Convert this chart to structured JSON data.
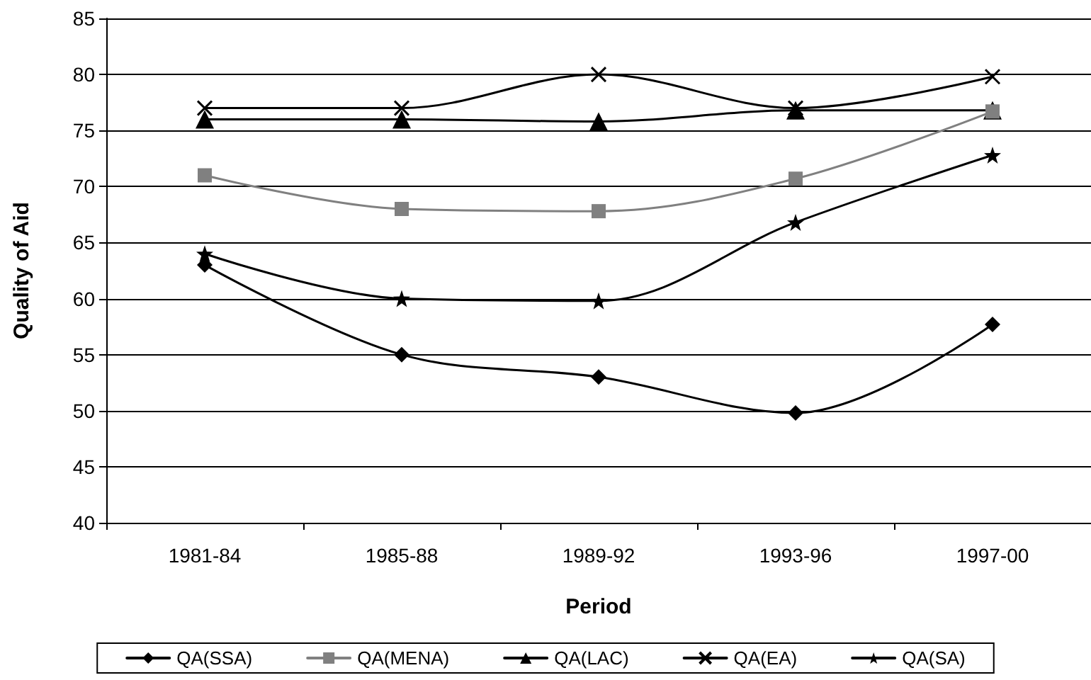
{
  "chart_data": {
    "type": "line",
    "xlabel": "Period",
    "ylabel": "Quality of Aid",
    "categories": [
      "1981-84",
      "1985-88",
      "1989-92",
      "1993-96",
      "1997-00"
    ],
    "series": [
      {
        "name": "QA(SSA)",
        "color": "#000000",
        "marker": "diamond",
        "values": [
          63,
          55,
          53,
          49.8,
          57.7
        ]
      },
      {
        "name": "QA(MENA)",
        "color": "#808080",
        "marker": "square",
        "values": [
          71,
          68,
          67.8,
          70.7,
          76.7
        ]
      },
      {
        "name": "QA(LAC)",
        "color": "#000000",
        "marker": "triangle",
        "values": [
          76,
          76,
          75.8,
          76.8,
          76.8
        ]
      },
      {
        "name": "QA(EA)",
        "color": "#000000",
        "marker": "cross",
        "values": [
          77,
          77,
          80,
          77,
          79.8
        ]
      },
      {
        "name": "QA(SA)",
        "color": "#000000",
        "marker": "star",
        "values": [
          64,
          60,
          59.8,
          66.8,
          72.8
        ]
      }
    ],
    "ylim": [
      40,
      85
    ],
    "yticks": [
      40,
      45,
      50,
      55,
      60,
      65,
      70,
      75,
      80,
      85
    ],
    "grid": "y",
    "legend": "bottom",
    "line_style": "solid"
  }
}
